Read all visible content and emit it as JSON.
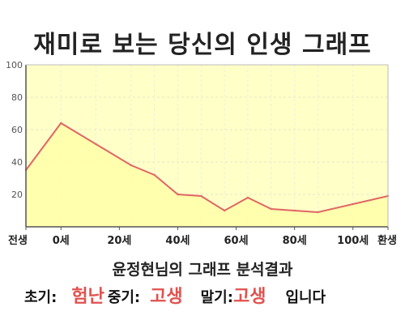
{
  "title": "재미로 보는 당신의 인생 그래프",
  "summary": {
    "heading": "윤정현님의 그래프 분석결과",
    "early_label": "초기:",
    "early_value": "험난",
    "middle_label": "중기:",
    "middle_value": "고생",
    "late_label": "말기:",
    "late_value": "고생",
    "suffix": "입니다"
  },
  "colors": {
    "line": "#e06666",
    "fill": "#ffffc8",
    "highlight": "#e0524f"
  },
  "chart_data": {
    "type": "area",
    "title": "재미로 보는 당신의 인생 그래프",
    "x": [
      -12,
      0,
      12,
      24,
      32,
      40,
      48,
      56,
      64,
      72,
      80,
      88,
      100,
      112
    ],
    "x_ticks": [
      {
        "x": -12,
        "label": "전생"
      },
      {
        "x": 0,
        "label": "0세"
      },
      {
        "x": 20,
        "label": "20세"
      },
      {
        "x": 40,
        "label": "40세"
      },
      {
        "x": 60,
        "label": "60세"
      },
      {
        "x": 80,
        "label": "80세"
      },
      {
        "x": 100,
        "label": "100세"
      },
      {
        "x": 112,
        "label": "환생"
      }
    ],
    "values": [
      35,
      64,
      51,
      38,
      32,
      20,
      19,
      10,
      18,
      11,
      10,
      9,
      14,
      19
    ],
    "ylim": [
      0,
      100
    ],
    "y_ticks": [
      20,
      40,
      60,
      80,
      100
    ],
    "grid": true,
    "xlabel": "",
    "ylabel": ""
  }
}
